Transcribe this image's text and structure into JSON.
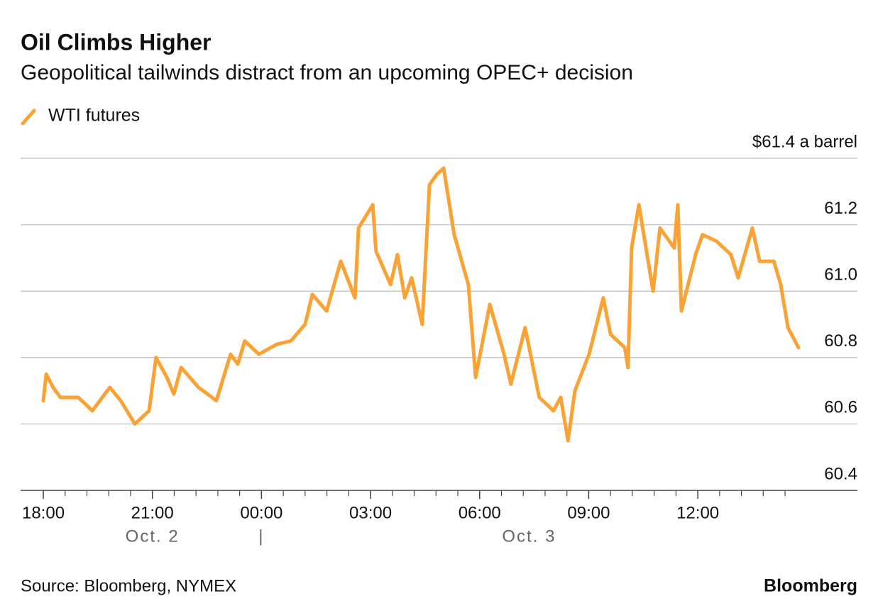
{
  "chart_data": {
    "type": "line",
    "title": "Oil Climbs Higher",
    "subtitle": "Geopolitical tailwinds distract from an upcoming OPEC+ decision",
    "source": "Source: Bloomberg, NYMEX",
    "brand": "Bloomberg",
    "series": [
      {
        "name": "WTI futures",
        "color": "#fba235",
        "x": [
          0,
          0.08,
          0.27,
          0.47,
          0.96,
          1.35,
          1.83,
          2.13,
          2.52,
          2.91,
          3.1,
          3.4,
          3.59,
          3.79,
          4.27,
          4.76,
          5.15,
          5.35,
          5.54,
          5.93,
          6.42,
          6.81,
          7.2,
          7.4,
          7.79,
          8.18,
          8.57,
          8.67,
          9.06,
          9.15,
          9.55,
          9.74,
          9.94,
          10.13,
          10.42,
          10.62,
          10.81,
          11.01,
          11.3,
          11.69,
          11.89,
          12.28,
          12.67,
          12.86,
          13.25,
          13.64,
          14.03,
          14.23,
          14.43,
          14.62,
          15.01,
          15.4,
          15.6,
          15.99,
          16.08,
          16.18,
          16.38,
          16.77,
          16.96,
          17.35,
          17.45,
          17.55,
          17.94,
          18.13,
          18.52,
          18.91,
          19.11,
          19.5,
          19.7,
          20.09,
          20.28,
          20.48,
          20.77
        ],
        "values": [
          60.67,
          60.75,
          60.71,
          60.68,
          60.68,
          60.64,
          60.71,
          60.67,
          60.6,
          60.64,
          60.8,
          60.74,
          60.69,
          60.77,
          60.71,
          60.67,
          60.81,
          60.78,
          60.85,
          60.81,
          60.84,
          60.85,
          60.9,
          60.99,
          60.94,
          61.09,
          60.98,
          61.19,
          61.26,
          61.12,
          61.02,
          61.11,
          60.98,
          61.04,
          60.9,
          61.32,
          61.35,
          61.37,
          61.17,
          61.02,
          60.74,
          60.96,
          60.81,
          60.72,
          60.89,
          60.68,
          60.64,
          60.68,
          60.55,
          60.7,
          60.81,
          60.98,
          60.87,
          60.83,
          60.77,
          61.13,
          61.26,
          61,
          61.19,
          61.13,
          61.26,
          60.94,
          61.11,
          61.17,
          61.15,
          61.11,
          61.04,
          61.19,
          61.09,
          61.09,
          61.02,
          60.89,
          60.83
        ]
      }
    ],
    "xlim": [
      -0.625,
      22.39
    ],
    "xticks": [
      {
        "value": 0,
        "label": "18:00"
      },
      {
        "value": 3,
        "label": "21:00"
      },
      {
        "value": 6,
        "label": "00:00"
      },
      {
        "value": 9,
        "label": "03:00"
      },
      {
        "value": 12,
        "label": "06:00"
      },
      {
        "value": 15,
        "label": "09:00"
      },
      {
        "value": 18,
        "label": "12:00"
      }
    ],
    "minor_xticks": [
      0,
      0.6,
      1.2,
      1.8,
      2.4,
      3,
      3.6,
      4.2,
      4.8,
      5.4,
      6,
      6.6,
      7.2,
      7.8,
      8.4,
      9,
      9.6,
      10.2,
      10.8,
      11.4,
      12,
      12.6,
      13.2,
      13.8,
      14.4,
      15,
      15.6,
      16.2,
      16.8,
      17.4,
      18,
      18.6,
      19.2,
      19.8,
      20.4
    ],
    "ylim": [
      60.4,
      61.4
    ],
    "yticks": [
      60.4,
      60.6,
      60.8,
      {
        "value": 61,
        "label": "61.0"
      },
      61.2,
      {
        "value": 61.4,
        "label": "$61.4 a barrel"
      }
    ],
    "grid": true,
    "date_labels": [
      {
        "text": "Oct. 2",
        "x": 3
      },
      {
        "text": "|",
        "x": 6
      },
      {
        "text": "Oct. 3",
        "x": 13.36
      }
    ]
  }
}
